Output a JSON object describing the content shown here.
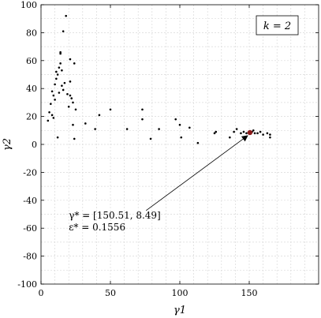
{
  "chart_data": {
    "type": "scatter",
    "title": "",
    "xlabel": "γ1",
    "ylabel": "γ2",
    "xlim": [
      0,
      200
    ],
    "ylim": [
      -100,
      100
    ],
    "xticks": [
      0,
      50,
      100,
      150
    ],
    "yticks": [
      -100,
      -80,
      -60,
      -40,
      -20,
      0,
      20,
      40,
      60,
      80,
      100
    ],
    "grid": true,
    "legend": {
      "text": "k = 2",
      "position": "top-right"
    },
    "marker_color": "#000000",
    "highlight_color": "#8b1a1a",
    "points": [
      {
        "x": 5,
        "y": 17
      },
      {
        "x": 6,
        "y": 23
      },
      {
        "x": 7,
        "y": 29
      },
      {
        "x": 8,
        "y": 21
      },
      {
        "x": 8,
        "y": 38
      },
      {
        "x": 9,
        "y": 35
      },
      {
        "x": 9,
        "y": 19
      },
      {
        "x": 10,
        "y": 43
      },
      {
        "x": 10,
        "y": 32
      },
      {
        "x": 11,
        "y": 47
      },
      {
        "x": 11,
        "y": 52
      },
      {
        "x": 12,
        "y": 50
      },
      {
        "x": 12,
        "y": 5
      },
      {
        "x": 13,
        "y": 55
      },
      {
        "x": 13,
        "y": 37
      },
      {
        "x": 14,
        "y": 58
      },
      {
        "x": 14,
        "y": 65
      },
      {
        "x": 14,
        "y": 66
      },
      {
        "x": 15,
        "y": 53
      },
      {
        "x": 15,
        "y": 42
      },
      {
        "x": 16,
        "y": 81
      },
      {
        "x": 16,
        "y": 39
      },
      {
        "x": 17,
        "y": 44
      },
      {
        "x": 18,
        "y": 92
      },
      {
        "x": 19,
        "y": 36
      },
      {
        "x": 20,
        "y": 27
      },
      {
        "x": 21,
        "y": 61
      },
      {
        "x": 21,
        "y": 35
      },
      {
        "x": 21,
        "y": 45
      },
      {
        "x": 22,
        "y": 33
      },
      {
        "x": 23,
        "y": 30
      },
      {
        "x": 23,
        "y": 14
      },
      {
        "x": 24,
        "y": 58
      },
      {
        "x": 24,
        "y": 4
      },
      {
        "x": 25,
        "y": 25
      },
      {
        "x": 32,
        "y": 15
      },
      {
        "x": 39,
        "y": 11
      },
      {
        "x": 42,
        "y": 21
      },
      {
        "x": 50,
        "y": 25
      },
      {
        "x": 62,
        "y": 11
      },
      {
        "x": 73,
        "y": 25
      },
      {
        "x": 73,
        "y": 18
      },
      {
        "x": 79,
        "y": 4
      },
      {
        "x": 85,
        "y": 11
      },
      {
        "x": 97,
        "y": 18
      },
      {
        "x": 100,
        "y": 14
      },
      {
        "x": 101,
        "y": 5
      },
      {
        "x": 107,
        "y": 12
      },
      {
        "x": 113,
        "y": 1
      },
      {
        "x": 125,
        "y": 8
      },
      {
        "x": 126,
        "y": 9
      },
      {
        "x": 136,
        "y": 5
      },
      {
        "x": 139,
        "y": 9
      },
      {
        "x": 141,
        "y": 11
      },
      {
        "x": 144,
        "y": 8
      },
      {
        "x": 146,
        "y": 9
      },
      {
        "x": 148,
        "y": 8
      },
      {
        "x": 150,
        "y": 9
      },
      {
        "x": 151,
        "y": 8
      },
      {
        "x": 152,
        "y": 9
      },
      {
        "x": 153,
        "y": 10
      },
      {
        "x": 154,
        "y": 8
      },
      {
        "x": 156,
        "y": 8
      },
      {
        "x": 158,
        "y": 9
      },
      {
        "x": 160,
        "y": 7
      },
      {
        "x": 163,
        "y": 8
      },
      {
        "x": 165,
        "y": 7
      },
      {
        "x": 165,
        "y": 5
      }
    ],
    "optimum": {
      "x": 150.51,
      "y": 8.49
    },
    "annotation": {
      "line1": "γ* = [150.51, 8.49]",
      "line2": "ε* = 0.1556",
      "text_x": 20,
      "text_y": -53
    }
  }
}
